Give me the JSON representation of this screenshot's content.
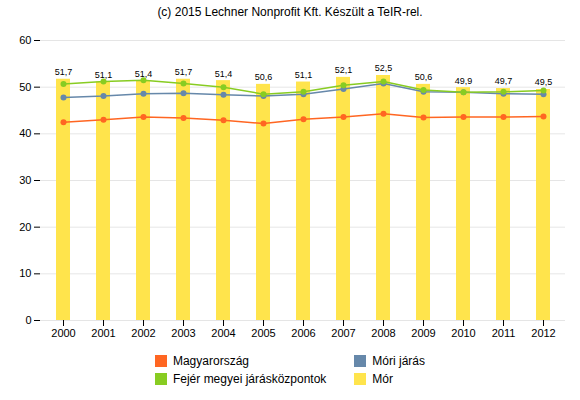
{
  "chart_data": {
    "type": "bar",
    "title": "(c) 2015 Lechner Nonprofit Kft. Készült a TeIR-rel.",
    "categories": [
      "2000",
      "2001",
      "2002",
      "2003",
      "2004",
      "2005",
      "2006",
      "2007",
      "2008",
      "2009",
      "2010",
      "2011",
      "2012"
    ],
    "series": [
      {
        "name": "Magyarország",
        "type": "line",
        "color": "#FF6622",
        "marker": "circle",
        "values": [
          42.5,
          43.0,
          43.6,
          43.4,
          42.9,
          42.2,
          43.1,
          43.6,
          44.3,
          43.5,
          43.6,
          43.6,
          43.7
        ]
      },
      {
        "name": "Móri járás",
        "type": "line",
        "color": "#6688AA",
        "marker": "circle",
        "values": [
          47.8,
          48.1,
          48.6,
          48.7,
          48.4,
          48.1,
          48.5,
          49.6,
          50.8,
          49.0,
          48.9,
          48.6,
          48.5
        ]
      },
      {
        "name": "Fejér megyei járásközpontok",
        "type": "line",
        "color": "#88CC22",
        "marker": "circle",
        "values": [
          50.7,
          51.2,
          51.5,
          50.8,
          50.0,
          48.5,
          49.0,
          50.4,
          51.2,
          49.4,
          48.9,
          49.0,
          49.3
        ]
      },
      {
        "name": "Mór",
        "type": "bar",
        "color": "#FFE44C",
        "values": [
          51.7,
          51.1,
          51.4,
          51.7,
          51.4,
          50.6,
          51.1,
          52.1,
          52.5,
          50.6,
          49.9,
          49.7,
          49.5
        ],
        "value_labels": [
          "51,7",
          "51,1",
          "51,4",
          "51,7",
          "51,4",
          "50,6",
          "51,1",
          "52,1",
          "52,5",
          "50,6",
          "49,9",
          "49,7",
          "49,5"
        ]
      }
    ],
    "ylim": [
      0,
      60
    ],
    "yticks": [
      0,
      10,
      20,
      30,
      40,
      50,
      60
    ],
    "grid": true,
    "data_labels": true,
    "legend": "bottom"
  }
}
